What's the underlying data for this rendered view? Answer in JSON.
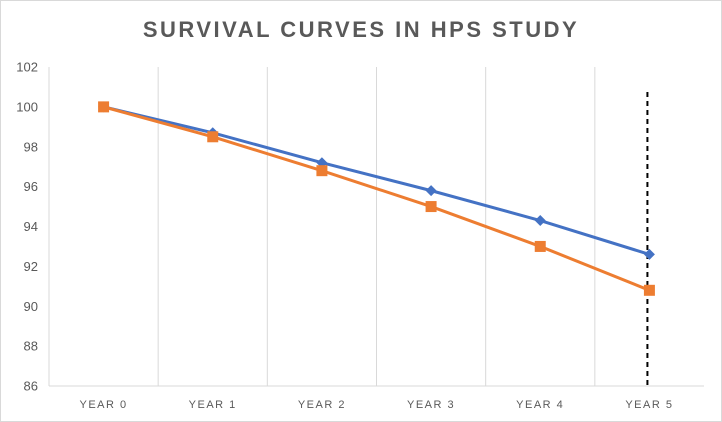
{
  "chart_data": {
    "type": "line",
    "title": "SURVIVAL CURVES IN HPS STUDY",
    "xlabel": "",
    "ylabel": "",
    "categories": [
      "YEAR 0",
      "YEAR 1",
      "YEAR 2",
      "YEAR 3",
      "YEAR 4",
      "YEAR 5"
    ],
    "y_ticks": [
      "86",
      "88",
      "90",
      "92",
      "94",
      "96",
      "98",
      "100",
      "102"
    ],
    "ylim": [
      86,
      102
    ],
    "grid": "vertical",
    "legend": "none",
    "series": [
      {
        "values": [
          100,
          98.7,
          97.2,
          95.8,
          94.3,
          92.6
        ],
        "color": "#4472c4",
        "marker": "diamond"
      },
      {
        "values": [
          100,
          98.5,
          96.8,
          95.0,
          93.0,
          90.8
        ],
        "color": "#ed7d31",
        "marker": "square"
      }
    ],
    "reference_line": {
      "category": "YEAR 5",
      "style": "dashed",
      "color": "#000000"
    }
  }
}
